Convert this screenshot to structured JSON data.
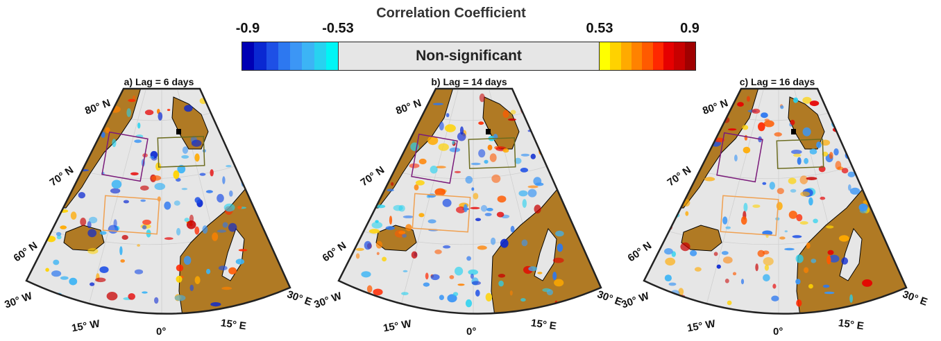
{
  "colorbar": {
    "title": "Correlation Coefficient",
    "ticks": [
      "-0.9",
      "-0.53",
      "0.53",
      "0.9"
    ],
    "middle_label": "Non-significant",
    "negative_colors": [
      "#0000b4",
      "#0a28d2",
      "#1e50e6",
      "#2d78f0",
      "#3c96f5",
      "#3cb4f5",
      "#28d2f0",
      "#00f5f5"
    ],
    "positive_colors": [
      "#ffff00",
      "#ffd200",
      "#ffaa00",
      "#ff8200",
      "#ff5a00",
      "#ff2800",
      "#e60000",
      "#c80000",
      "#a00000"
    ]
  },
  "panels": [
    {
      "title": "a) Lag = 6 days"
    },
    {
      "title": "b) Lag = 14 days"
    },
    {
      "title": "c) Lag = 16 days"
    }
  ],
  "lat_labels": [
    "80° N",
    "70° N",
    "60° N"
  ],
  "lon_labels": [
    "30° W",
    "15° W",
    "0°",
    "15° E",
    "30° E"
  ],
  "colors": {
    "land": "#b07a24",
    "ocean": "#e6e6e6",
    "box_purple": "#7a1a7a",
    "box_olive": "#6b6b1e",
    "box_orange": "#f0a050"
  }
}
